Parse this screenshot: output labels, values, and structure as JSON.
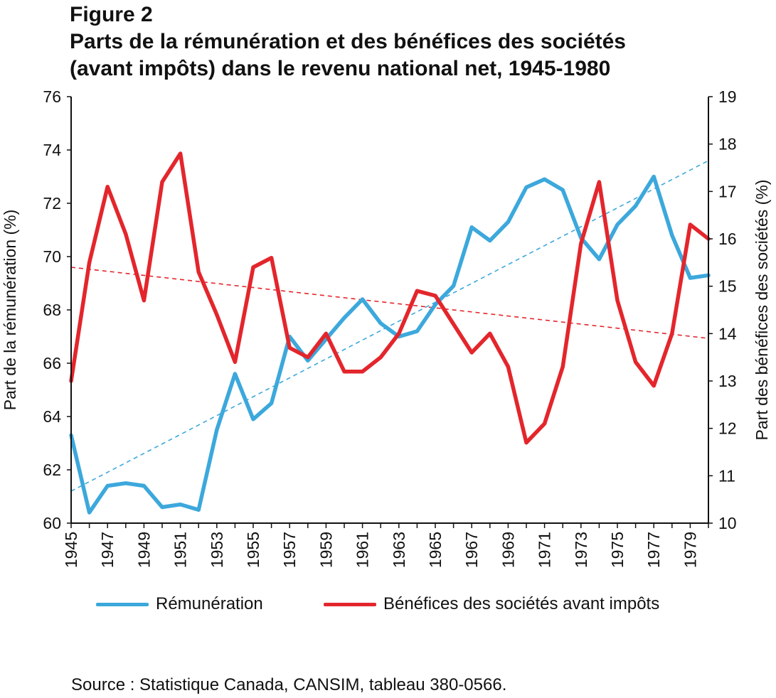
{
  "figure": {
    "label": "Figure 2",
    "title_line1": "Parts de la rémunération et des bénéfices des sociétés",
    "title_line2": "(avant impôts) dans le revenu national net, 1945-1980"
  },
  "colors": {
    "remuneration": "#3ca8dc",
    "benefices": "#e3262c",
    "axis": "#111111"
  },
  "chart_data": {
    "type": "line",
    "x": [
      1945,
      1946,
      1947,
      1948,
      1949,
      1950,
      1951,
      1952,
      1953,
      1954,
      1955,
      1956,
      1957,
      1958,
      1959,
      1960,
      1961,
      1962,
      1963,
      1964,
      1965,
      1966,
      1967,
      1968,
      1969,
      1970,
      1971,
      1972,
      1973,
      1974,
      1975,
      1976,
      1977,
      1978,
      1979,
      1980
    ],
    "x_tick_labels": [
      "1945",
      "1947",
      "1949",
      "1951",
      "1953",
      "1955",
      "1957",
      "1959",
      "1961",
      "1963",
      "1965",
      "1967",
      "1969",
      "1971",
      "1973",
      "1975",
      "1977",
      "1979"
    ],
    "xlim": [
      1945,
      1980
    ],
    "ylabel_left": "Part de la rémunération (%)",
    "ylabel_right": "Part des bénéfices des sociétés (%)",
    "ylim_left": [
      60,
      76
    ],
    "ylim_right": [
      10,
      19
    ],
    "y_ticks_left": [
      "60",
      "62",
      "64",
      "66",
      "68",
      "70",
      "72",
      "74",
      "76"
    ],
    "y_ticks_right": [
      "10",
      "11",
      "12",
      "13",
      "14",
      "15",
      "16",
      "17",
      "18",
      "19"
    ],
    "series": [
      {
        "name": "Rémunération",
        "axis": "left",
        "values": [
          63.3,
          60.4,
          61.4,
          61.5,
          61.4,
          60.6,
          60.7,
          60.5,
          63.5,
          65.6,
          63.9,
          64.5,
          67.0,
          66.1,
          66.9,
          67.7,
          68.4,
          67.5,
          67.0,
          67.2,
          68.2,
          68.9,
          71.1,
          70.6,
          71.3,
          72.6,
          72.9,
          72.5,
          70.7,
          69.9,
          71.2,
          71.9,
          73.0,
          70.8,
          69.2,
          69.3
        ]
      },
      {
        "name": "Bénéfices des sociétés avant impôts",
        "axis": "right",
        "values": [
          13.0,
          15.5,
          17.1,
          16.1,
          14.7,
          17.2,
          17.8,
          15.3,
          14.4,
          13.4,
          15.4,
          15.6,
          13.7,
          13.5,
          14.0,
          13.2,
          13.2,
          13.5,
          14.0,
          14.9,
          14.8,
          14.2,
          13.6,
          14.0,
          13.3,
          11.7,
          12.1,
          13.3,
          15.9,
          17.2,
          14.7,
          13.4,
          12.9,
          14.0,
          16.3,
          16.0
        ]
      }
    ],
    "trendlines": [
      {
        "series": "Rémunération",
        "axis": "left",
        "x": [
          1945,
          1980
        ],
        "y": [
          61.2,
          73.6
        ]
      },
      {
        "series": "Bénéfices des sociétés avant impôts",
        "axis": "right",
        "x": [
          1945,
          1980
        ],
        "y": [
          15.4,
          13.9
        ]
      }
    ],
    "grid": false,
    "legend_position": "bottom"
  },
  "source": "Source : Statistique Canada, CANSIM, tableau 380-0566."
}
